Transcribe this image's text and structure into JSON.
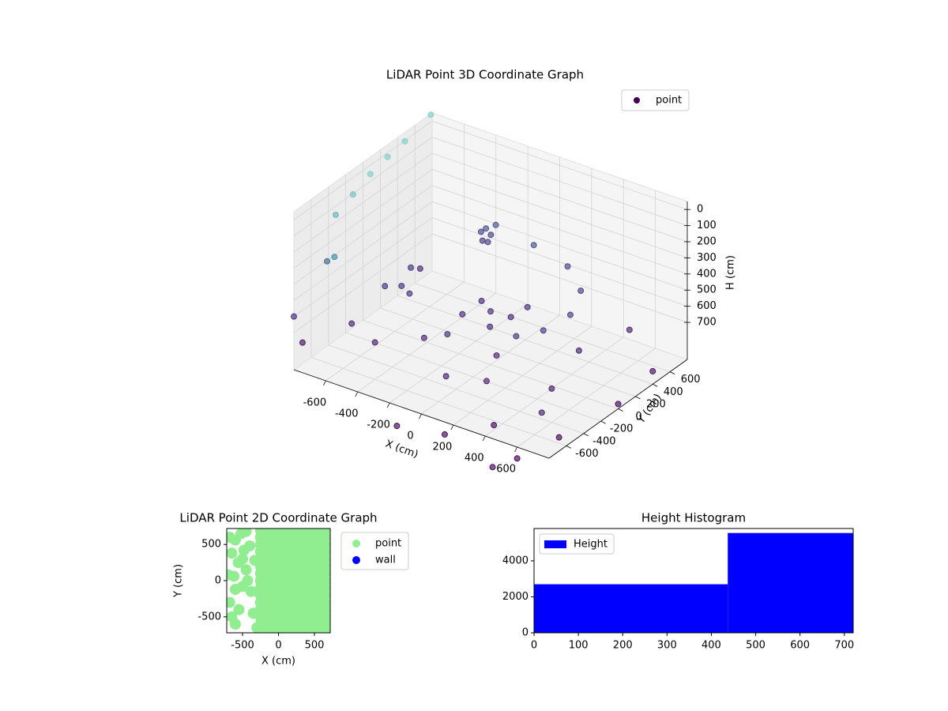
{
  "chart_data": [
    {
      "type": "scatter3d",
      "title": "LiDAR Point 3D Coordinate Graph",
      "xlabel": "X (cm)",
      "ylabel": "Y (cm)",
      "zlabel": "H (cm)",
      "name": "point",
      "legend_color": "#440154",
      "legend": "upper right",
      "grid": true,
      "colormap": [
        "#7fd0c8",
        "#3f8fa0",
        "#443983",
        "#46206e",
        "#440154"
      ],
      "xlim": [
        -800,
        800
      ],
      "ylim": [
        -800,
        800
      ],
      "zlim": [
        930,
        -50
      ],
      "xticks": [
        -600,
        -400,
        -200,
        0,
        200,
        400,
        600
      ],
      "yticks": [
        -600,
        -400,
        -200,
        0,
        200,
        400,
        600
      ],
      "zticks": [
        0,
        100,
        200,
        300,
        400,
        500,
        600,
        700
      ],
      "x": [
        -300,
        -280,
        -320,
        -260,
        -300,
        500,
        430,
        250,
        0,
        -250,
        350,
        0,
        -450,
        -500,
        450,
        0,
        100,
        -100,
        50,
        150,
        -150,
        300,
        600,
        -400,
        200,
        500,
        600,
        -600,
        700,
        100,
        -200,
        400,
        700,
        600,
        200,
        800,
        800,
        -100,
        500,
        -700,
        -700,
        -700,
        -700,
        -700,
        -700,
        -600,
        -700,
        -800,
        -800,
        -500,
        -400,
        -550
      ],
      "y": [
        500,
        520,
        480,
        540,
        460,
        0,
        250,
        430,
        500,
        430,
        -350,
        -500,
        -200,
        0,
        -220,
        0,
        50,
        80,
        -100,
        150,
        -50,
        -600,
        -400,
        -600,
        -300,
        100,
        500,
        -500,
        -700,
        -700,
        -400,
        -700,
        -500,
        -800,
        -900,
        0,
        400,
        -900,
        -900,
        -500,
        -300,
        -100,
        100,
        300,
        600,
        -700,
        -600,
        -800,
        -700,
        -300,
        -200,
        200
      ],
      "z": [
        380,
        420,
        400,
        360,
        440,
        450,
        420,
        400,
        380,
        420,
        500,
        550,
        520,
        500,
        480,
        600,
        620,
        600,
        640,
        580,
        650,
        700,
        720,
        700,
        690,
        710,
        700,
        690,
        720,
        700,
        680,
        900,
        950,
        1000,
        950,
        900,
        850,
        1000,
        1050,
        50,
        0,
        -50,
        -80,
        -100,
        -150,
        200,
        300,
        600,
        800,
        500,
        550,
        600
      ]
    },
    {
      "type": "scatter",
      "title": "LiDAR Point 2D Coordinate Graph",
      "xlabel": "X (cm)",
      "ylabel": "Y (cm)",
      "legend": "outside right",
      "xlim": [
        -720,
        720
      ],
      "ylim": [
        -720,
        720
      ],
      "xticks": [
        -500,
        0,
        500
      ],
      "yticks": [
        -500,
        0,
        500
      ],
      "series": [
        {
          "name": "point",
          "color": "#90ee90",
          "x": [
            -250,
            -150,
            -50,
            50,
            150,
            250,
            350,
            450,
            550,
            650,
            -250,
            -150,
            -50,
            50,
            150,
            250,
            350,
            450,
            550,
            650,
            -250,
            -150,
            -50,
            50,
            150,
            250,
            350,
            450,
            550,
            650,
            -250,
            -150,
            -50,
            50,
            150,
            250,
            350,
            450,
            550,
            650,
            -250,
            -150,
            -50,
            50,
            150,
            250,
            350,
            450,
            550,
            650,
            -250,
            -150,
            -50,
            50,
            150,
            250,
            350,
            450,
            550,
            650,
            -250,
            -150,
            -50,
            50,
            150,
            250,
            350,
            450,
            550,
            650,
            -250,
            -150,
            -50,
            50,
            150,
            250,
            350,
            450,
            550,
            650,
            -250,
            -150,
            -50,
            50,
            150,
            250,
            350,
            450,
            550,
            650,
            -250,
            -150,
            -50,
            50,
            150,
            250,
            350,
            450,
            550,
            650,
            -250,
            -150,
            -50,
            50,
            150,
            250,
            350,
            450,
            550,
            650,
            -250,
            -150,
            -50,
            50,
            150,
            250,
            350,
            450,
            550,
            650,
            -250,
            -150,
            -50,
            50,
            150,
            250,
            350,
            450,
            550,
            650,
            -250,
            -150,
            -50,
            50,
            150,
            250,
            350,
            450,
            550,
            650,
            -250,
            -150,
            -50,
            50,
            150,
            250,
            350,
            450,
            550,
            650,
            -680,
            -600,
            -520,
            -450,
            -400,
            -480,
            -650,
            -560,
            -700,
            -620,
            -500,
            -430,
            -380,
            -600,
            -680,
            -550,
            -650,
            -600,
            -350,
            -300,
            -500,
            -330,
            -450
          ],
          "y": [
            -700,
            -700,
            -700,
            -700,
            -700,
            -700,
            -700,
            -700,
            -700,
            -700,
            -600,
            -600,
            -600,
            -600,
            -600,
            -600,
            -600,
            -600,
            -600,
            -600,
            -500,
            -500,
            -500,
            -500,
            -500,
            -500,
            -500,
            -500,
            -500,
            -500,
            -400,
            -400,
            -400,
            -400,
            -400,
            -400,
            -400,
            -400,
            -400,
            -400,
            -300,
            -300,
            -300,
            -300,
            -300,
            -300,
            -300,
            -300,
            -300,
            -300,
            -200,
            -200,
            -200,
            -200,
            -200,
            -200,
            -200,
            -200,
            -200,
            -200,
            -100,
            -100,
            -100,
            -100,
            -100,
            -100,
            -100,
            -100,
            -100,
            -100,
            0,
            0,
            0,
            0,
            0,
            0,
            0,
            0,
            0,
            0,
            100,
            100,
            100,
            100,
            100,
            100,
            100,
            100,
            100,
            100,
            200,
            200,
            200,
            200,
            200,
            200,
            200,
            200,
            200,
            200,
            300,
            300,
            300,
            300,
            300,
            300,
            300,
            300,
            300,
            300,
            400,
            400,
            400,
            400,
            400,
            400,
            400,
            400,
            400,
            400,
            500,
            500,
            500,
            500,
            500,
            500,
            500,
            500,
            500,
            500,
            600,
            600,
            600,
            600,
            600,
            600,
            600,
            600,
            600,
            600,
            700,
            700,
            700,
            700,
            700,
            700,
            700,
            700,
            700,
            700,
            600,
            560,
            650,
            680,
            480,
            420,
            380,
            250,
            80,
            60,
            -80,
            0,
            -150,
            -120,
            -300,
            -400,
            -500,
            -600,
            -450,
            -650,
            300,
            280,
            150
          ]
        },
        {
          "name": "wall",
          "color": "#0000ff",
          "x": [],
          "y": []
        }
      ]
    },
    {
      "type": "histogram",
      "title": "Height Histogram",
      "name": "Height",
      "color": "#0000ff",
      "legend": "upper left",
      "bins": [
        0,
        437,
        720
      ],
      "counts": [
        2700,
        5550
      ],
      "xlim": [
        0,
        720
      ],
      "ylim": [
        0,
        5800
      ],
      "xticks": [
        0,
        100,
        200,
        300,
        400,
        500,
        600,
        700
      ],
      "yticks": [
        0,
        2000,
        4000
      ]
    }
  ]
}
